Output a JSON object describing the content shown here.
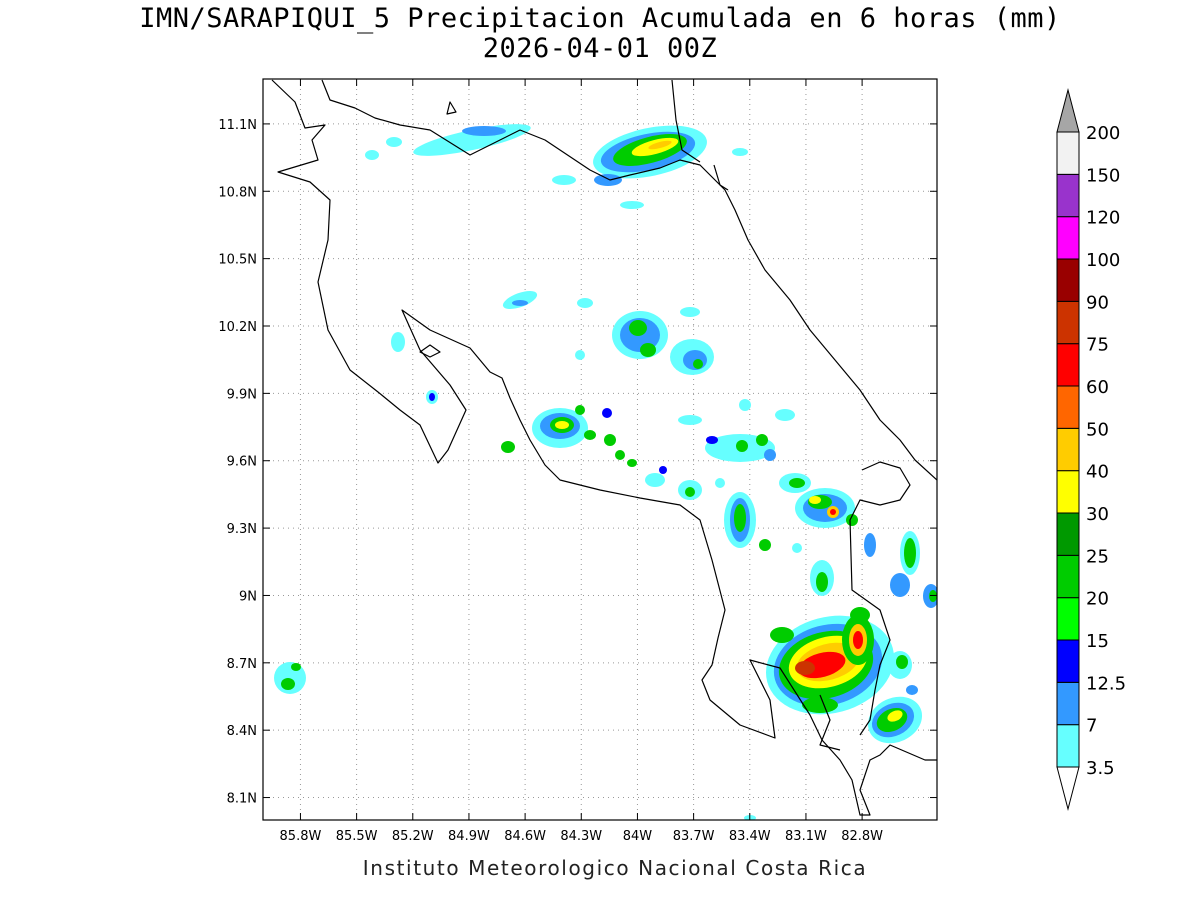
{
  "title": "IMN/SARAPIQUI_5 Precipitacion Acumulada en 6 horas (mm)",
  "subtitle": "2026-04-01 00Z",
  "credit": "Instituto Meteorologico Nacional Costa Rica",
  "map": {
    "lon_range": [
      -86.0,
      -82.4
    ],
    "lat_range": [
      8.0,
      11.3
    ],
    "lon_ticks": [
      "85.8W",
      "85.5W",
      "85.2W",
      "84.9W",
      "84.6W",
      "84.3W",
      "84W",
      "83.7W",
      "83.4W",
      "83.1W",
      "82.8W"
    ],
    "lon_tick_values": [
      -85.8,
      -85.5,
      -85.2,
      -84.9,
      -84.6,
      -84.3,
      -84.0,
      -83.7,
      -83.4,
      -83.1,
      -82.8
    ],
    "lat_ticks": [
      "11.1N",
      "10.8N",
      "10.5N",
      "10.2N",
      "9.9N",
      "9.6N",
      "9.3N",
      "9N",
      "8.7N",
      "8.4N",
      "8.1N"
    ],
    "lat_tick_values": [
      11.1,
      10.8,
      10.5,
      10.2,
      9.9,
      9.6,
      9.3,
      9.0,
      8.7,
      8.4,
      8.1
    ],
    "grid": "dotted"
  },
  "colorbar": {
    "labels": [
      "3.5",
      "7",
      "12.5",
      "15",
      "20",
      "25",
      "30",
      "40",
      "50",
      "60",
      "75",
      "90",
      "100",
      "120",
      "150",
      "200"
    ],
    "colors": [
      "#ffffff",
      "#66ffff",
      "#3399ff",
      "#0000ff",
      "#00ff00",
      "#00cc00",
      "#009900",
      "#ffff00",
      "#ffcc00",
      "#ff6600",
      "#ff0000",
      "#cc3300",
      "#990000",
      "#ff00ff",
      "#9933cc",
      "#f2f2f2",
      "#a6a6a6"
    ]
  }
}
